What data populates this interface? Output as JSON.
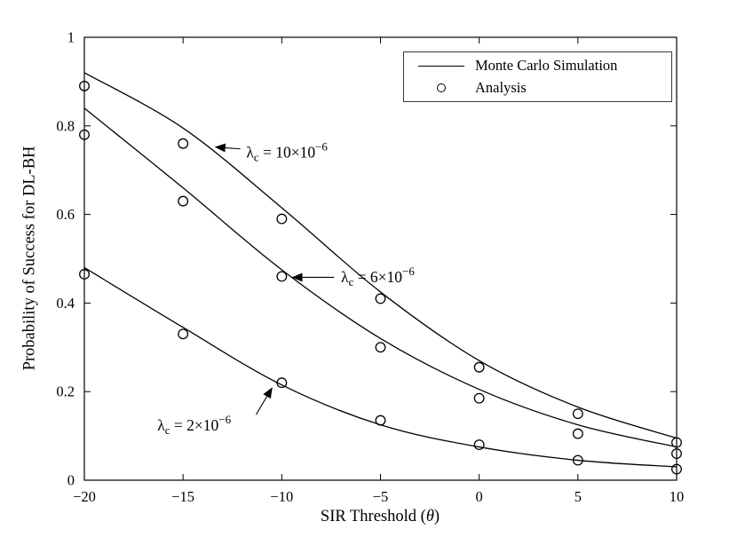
{
  "figure": {
    "background": "#ffffff",
    "axis_color": "#000000",
    "line_color": "#000000",
    "marker_color": "#000000"
  },
  "chart_data": {
    "type": "line",
    "title": "",
    "xlabel": "SIR Threshold (θ)",
    "xlabel_parts": {
      "prefix": "SIR Threshold (",
      "italic": "θ",
      "suffix": ")"
    },
    "ylabel": "Probability of Success for DL-BH",
    "xlim": [
      -20,
      10
    ],
    "ylim": [
      0,
      1
    ],
    "xticks": [
      -20,
      -15,
      -10,
      -5,
      0,
      5,
      10
    ],
    "yticks": [
      0,
      0.2,
      0.4,
      0.6,
      0.8,
      1
    ],
    "grid": false,
    "legend_position": "top-right",
    "legend": [
      {
        "label": "Monte Carlo Simulation",
        "sample": "line"
      },
      {
        "label": "Analysis",
        "sample": "circle"
      }
    ],
    "x": [
      -20,
      -15,
      -10,
      -5,
      0,
      5,
      10
    ],
    "series": [
      {
        "name": "lambda_c = 10×10^-6",
        "line": [
          0.92,
          0.795,
          0.615,
          0.425,
          0.27,
          0.165,
          0.095
        ],
        "markers": [
          0.89,
          0.76,
          0.59,
          0.41,
          0.255,
          0.15,
          0.085
        ]
      },
      {
        "name": "lambda_c = 6×10^-6",
        "line": [
          0.84,
          0.66,
          0.475,
          0.32,
          0.205,
          0.125,
          0.075
        ],
        "markers": [
          0.78,
          0.63,
          0.46,
          0.3,
          0.185,
          0.105,
          0.06
        ]
      },
      {
        "name": "lambda_c = 2×10^-6",
        "line": [
          0.48,
          0.345,
          0.215,
          0.125,
          0.075,
          0.045,
          0.03
        ],
        "markers": [
          0.465,
          0.33,
          0.22,
          0.135,
          0.08,
          0.045,
          0.025
        ]
      }
    ],
    "annotations": [
      {
        "parts": {
          "base": "λ",
          "sub": "c",
          "mid": " = 10×10",
          "sup": "-6"
        },
        "text_x": -11.8,
        "text_y": 0.728,
        "arrow": [
          -12.1,
          0.748,
          -13.35,
          0.752
        ]
      },
      {
        "parts": {
          "base": "λ",
          "sub": "c",
          "mid": " = 6×10",
          "sup": "-6"
        },
        "text_x": -7.0,
        "text_y": 0.447,
        "arrow": [
          -7.35,
          0.458,
          -9.45,
          0.458
        ]
      },
      {
        "parts": {
          "base": "λ",
          "sub": "c",
          "mid": " = 2×10",
          "sup": "-6"
        },
        "text_x": -16.3,
        "text_y": 0.112,
        "arrow": [
          -11.3,
          0.148,
          -10.5,
          0.208
        ]
      }
    ]
  }
}
